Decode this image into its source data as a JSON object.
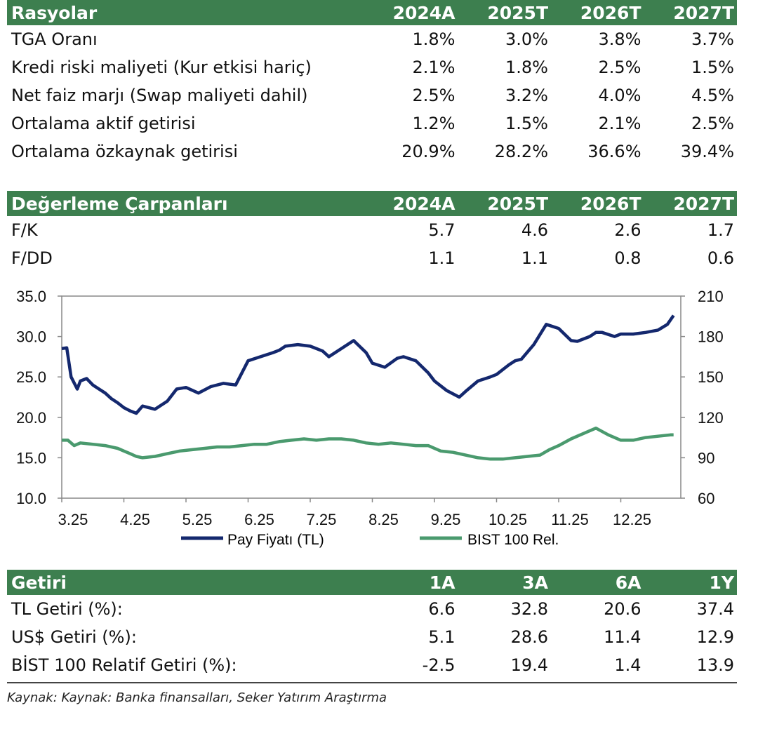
{
  "ratios": {
    "title": "Rasyolar",
    "columns": [
      "2024A",
      "2025T",
      "2026T",
      "2027T"
    ],
    "rows": [
      {
        "label": "TGA Oranı",
        "values": [
          "1.8%",
          "3.0%",
          "3.8%",
          "3.7%"
        ]
      },
      {
        "label": "Kredi riski maliyeti (Kur etkisi hariç)",
        "values": [
          "2.1%",
          "1.8%",
          "2.5%",
          "1.5%"
        ]
      },
      {
        "label": "Net faiz marjı (Swap maliyeti dahil)",
        "values": [
          "2.5%",
          "3.2%",
          "4.0%",
          "4.5%"
        ]
      },
      {
        "label": "Ortalama aktif getirisi",
        "values": [
          "1.2%",
          "1.5%",
          "2.1%",
          "2.5%"
        ]
      },
      {
        "label": "Ortalama özkaynak getirisi",
        "values": [
          "20.9%",
          "28.2%",
          "36.6%",
          "39.4%"
        ]
      }
    ]
  },
  "multiples": {
    "title": "Değerleme Çarpanları",
    "columns": [
      "2024A",
      "2025T",
      "2026T",
      "2027T"
    ],
    "rows": [
      {
        "label": "F/K",
        "values": [
          "5.7",
          "4.6",
          "2.6",
          "1.7"
        ]
      },
      {
        "label": "F/DD",
        "values": [
          "1.1",
          "1.1",
          "0.8",
          "0.6"
        ]
      }
    ]
  },
  "returns": {
    "title": "Getiri",
    "columns": [
      "1A",
      "3A",
      "6A",
      "1Y"
    ],
    "rows": [
      {
        "label": "TL Getiri (%):",
        "values": [
          "6.6",
          "32.8",
          "20.6",
          "37.4"
        ]
      },
      {
        "label": "US$ Getiri (%):",
        "values": [
          "5.1",
          "28.6",
          "11.4",
          "12.9"
        ]
      },
      {
        "label": "BİST 100 Relatif Getiri (%):",
        "values": [
          "-2.5",
          "19.4",
          "1.4",
          "13.9"
        ]
      }
    ]
  },
  "source": "Kaynak: Kaynak: Banka finansalları, Seker Yatırım Araştırma",
  "colors": {
    "header_bg": "#3d7f4f",
    "price_line": "#14286e",
    "bist_line": "#4a9a6e"
  },
  "chart_data": {
    "type": "line",
    "x_tick_labels": [
      "3.25",
      "4.25",
      "5.25",
      "6.25",
      "7.25",
      "8.25",
      "9.25",
      "10.25",
      "11.25",
      "12.25"
    ],
    "y_left": {
      "range": [
        10,
        35
      ],
      "ticks": [
        "10.0",
        "15.0",
        "20.0",
        "25.0",
        "30.0",
        "35.0"
      ]
    },
    "y_right": {
      "range": [
        60,
        210
      ],
      "ticks": [
        "60",
        "90",
        "120",
        "150",
        "180",
        "210"
      ]
    },
    "grid": false,
    "legend_position": "bottom",
    "series": [
      {
        "name": "Pay Fiyatı (TL)",
        "axis": "left",
        "x": [
          0,
          0.08,
          0.15,
          0.25,
          0.3,
          0.4,
          0.5,
          0.6,
          0.7,
          0.8,
          0.9,
          1.0,
          1.1,
          1.2,
          1.3,
          1.5,
          1.7,
          1.85,
          2.0,
          2.2,
          2.4,
          2.6,
          2.8,
          3.0,
          3.2,
          3.4,
          3.5,
          3.6,
          3.8,
          4.0,
          4.2,
          4.3,
          4.5,
          4.7,
          4.9,
          5.0,
          5.2,
          5.4,
          5.5,
          5.7,
          5.9,
          6.0,
          6.2,
          6.4,
          6.5,
          6.7,
          6.9,
          7.0,
          7.2,
          7.3,
          7.4,
          7.6,
          7.8,
          8.0,
          8.2,
          8.3,
          8.5,
          8.6,
          8.7,
          8.9,
          9.0,
          9.2,
          9.4,
          9.6,
          9.75,
          9.85
        ],
        "values": [
          28.5,
          28.6,
          25,
          23.5,
          24.5,
          24.8,
          24,
          23.5,
          23,
          22.3,
          21.8,
          21.2,
          20.8,
          20.5,
          21.4,
          21,
          22,
          23.5,
          23.7,
          23,
          23.8,
          24.2,
          24,
          27,
          27.5,
          28,
          28.3,
          28.8,
          29,
          28.8,
          28.2,
          27.5,
          28.5,
          29.5,
          28,
          26.7,
          26.2,
          27.3,
          27.5,
          27,
          25.5,
          24.5,
          23.3,
          22.5,
          23.2,
          24.5,
          25,
          25.3,
          26.5,
          27,
          27.2,
          29,
          31.5,
          31,
          29.5,
          29.4,
          30,
          30.5,
          30.5,
          30,
          30.3,
          30.3,
          30.5,
          30.8,
          31.5,
          32.6
        ]
      },
      {
        "name": "BIST 100 Rel.",
        "axis": "right",
        "x": [
          0,
          0.1,
          0.2,
          0.3,
          0.5,
          0.7,
          0.9,
          1.0,
          1.1,
          1.2,
          1.3,
          1.5,
          1.7,
          1.9,
          2.1,
          2.3,
          2.5,
          2.7,
          2.9,
          3.1,
          3.3,
          3.5,
          3.7,
          3.9,
          4.1,
          4.3,
          4.5,
          4.7,
          4.9,
          5.1,
          5.3,
          5.5,
          5.7,
          5.9,
          6.1,
          6.3,
          6.5,
          6.7,
          6.9,
          7.1,
          7.3,
          7.5,
          7.7,
          7.85,
          8.0,
          8.2,
          8.4,
          8.6,
          8.8,
          9.0,
          9.2,
          9.4,
          9.6,
          9.8,
          9.85
        ],
        "values": [
          103,
          103,
          99,
          101,
          100,
          99,
          97,
          95,
          93,
          91,
          90,
          91,
          93,
          95,
          96,
          97,
          98,
          98,
          99,
          100,
          100,
          102,
          103,
          104,
          103,
          104,
          104,
          103,
          101,
          100,
          101,
          100,
          99,
          99,
          95,
          94,
          92,
          90,
          89,
          89,
          90,
          91,
          92,
          96,
          99,
          104,
          108,
          112,
          107,
          103,
          103,
          105,
          106,
          107,
          107
        ]
      }
    ]
  }
}
